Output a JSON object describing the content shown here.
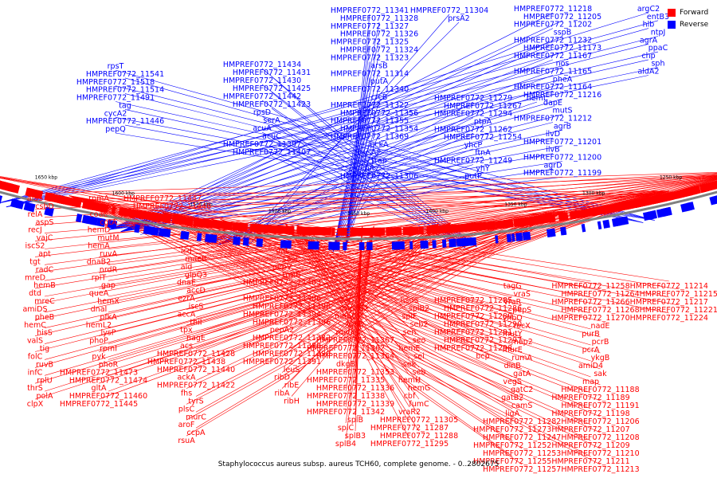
{
  "caption": "Staphylococcus aureus subsp. aureus TCH60, complete genome. - 0..2802675",
  "legend": [
    {
      "label": "Forward",
      "color": "#ff0000"
    },
    {
      "label": "Reverse",
      "color": "#0000ff"
    }
  ],
  "colors": {
    "forward": "#ff0000",
    "reverse": "#0000ff",
    "backbone": "#808080"
  },
  "kbp_ticks": [
    "1650 kbp",
    "1600 kbp",
    "1550 kbp",
    "1500 kbp",
    "1450 kbp",
    "1400 kbp",
    "1350 kbp",
    "1300 kbp",
    "1250 kbp"
  ],
  "labels": {
    "blue_left": [
      "rpsT",
      "HMPREF0772_11541",
      "HMPREF0772_11518",
      "HMPREF0772_11514",
      "HMPREF0772_11491",
      "tag",
      "cycA2",
      "HMPREF0772_11446",
      "pepQ"
    ],
    "blue_mid": [
      "HMPREF0772_11434",
      "HMPREF0772_11431",
      "HMPREF0772_11430",
      "HMPREF0772_11425",
      "HMPREF0772_11442",
      "HMPREF0772_11423",
      "rpsD",
      "serA",
      "acuA",
      "acuC",
      "HMPREF0772_11397",
      "HMPREF0772_11407"
    ],
    "blue_center": [
      "HMPREF0772_11341",
      "HMPREF0772_11328",
      "HMPREF0772_11327",
      "HMPREF0772_11326",
      "HMPREF0772_11325",
      "HMPREF0772_11324",
      "HMPREF0772_11323",
      "arsB",
      "HMPREF0772_11314",
      "putA",
      "HMPREF0772_11340",
      "crcB",
      "HMPREF0772_11322",
      "HMPREF0772_11356",
      "HMPREF0772_11355",
      "HMPREF0772_11354",
      "HMPREF0772_11369",
      "pckA",
      "hysA2",
      "trap",
      "hit",
      "HMPREF0772_11306",
      "HMPREF0772_11304",
      "prsA2"
    ],
    "blue_right_mid": [
      "HMPREF0772_11279",
      "HMPREF0772_11267",
      "HMPREF0772_11294",
      "ptpA",
      "HMPREF0772_11262",
      "HMPREF0772_11254",
      "yhcP",
      "ftnA",
      "HMPREF0772_11249",
      "yhY",
      "putP",
      "hemL"
    ],
    "blue_right": [
      "HMPREF0772_11218",
      "HMPREF0772_11205",
      "HMPREF0772_11202",
      "sspB",
      "HMPREF0772_11232",
      "HMPREF0772_11173",
      "HMPREF0772_11167",
      "nos",
      "HMPREF0772_11165",
      "pheA",
      "HMPREF0772_11164",
      "HMPREF0772_11216",
      "dapE",
      "mutS",
      "HMPREF0772_11212",
      "agrB",
      "ilvD",
      "HMPREF0772_11201",
      "ilvB",
      "HMPREF0772_11200",
      "agrD",
      "HMPREF0772_11199",
      "argC2",
      "entB3",
      "hlb",
      "ntpJ",
      "agrA",
      "ppaC",
      "chp",
      "sph",
      "aldA2"
    ],
    "red_left": [
      "alaS",
      "csbD",
      "relA",
      "aspS",
      "recJ",
      "vajC",
      "iscS2",
      "apt",
      "tgt",
      "radC",
      "mreD",
      "hemB",
      "dtd",
      "mreC",
      "amiDS",
      "pheB",
      "hemC",
      "hisS",
      "valS",
      "tig",
      "folC",
      "ruvB",
      "infC",
      "rplU",
      "thrS",
      "polA",
      "clpX",
      "rpmA",
      "ysxC",
      "coaE",
      "cgtA",
      "hemD",
      "mutM",
      "hemA",
      "ruvA",
      "dnaB2",
      "nrdR",
      "rplT",
      "gap",
      "queA",
      "hemX",
      "dnaI",
      "pfkA",
      "hemL2",
      "lysP",
      "phoP",
      "rpmI",
      "pyk",
      "phoR",
      "HMPREF0772_11473",
      "HMPREF0772_11474",
      "gltA",
      "HMPREF0772_11460",
      "HMPREF0772_11445",
      "HMPREF0772_11447",
      "HMPREF0772_11448"
    ],
    "red_mid": [
      "icd",
      "maeB",
      "ald",
      "glpQ3",
      "dnaE",
      "accD",
      "ezrA",
      "iscS",
      "accA",
      "thiI",
      "tpx",
      "nagE",
      "acs",
      "HMPREF0772_11428",
      "HMPREF0772_11438",
      "HMPREF0772_11440",
      "ackA",
      "HMPREF0772_11422",
      "fhs",
      "tyrS",
      "plsC",
      "murC",
      "aroF",
      "ccpA",
      "rsuA",
      "dat",
      "sasC",
      "pepV",
      "trmB",
      "HMPREF0772_11403",
      "rot",
      "HMPREF0772_11406",
      "HMPREF0772_11398",
      "HMPREF0772_11394",
      "HMPREF0772_11396",
      "pepA2",
      "HMPREF0772_11382",
      "HMPREF0772_11388",
      "HMPREF0772_11390",
      "HMPREF0772_11391",
      "leuS",
      "ribD",
      "ribE",
      "ribA",
      "ribH"
    ],
    "red_center": [
      "tal",
      "menE2",
      "menC",
      "ytkD",
      "metK",
      "HMPREF0772_11367",
      "HMPREF0772_11362",
      "HMPREF0772_11364",
      "dkgB",
      "HMPREF0772_11353",
      "HMPREF0772_11335",
      "HMPREF0772_11336",
      "HMPREF0772_11338",
      "HMPREF0772_11339",
      "HMPREF0772_11342",
      "splB",
      "splC",
      "splB3",
      "splB4",
      "hsdS",
      "splB2",
      "splF",
      "seb2",
      "sen",
      "seo",
      "hemE",
      "sei",
      "sek",
      "seb",
      "hemH",
      "hemG",
      "cbf",
      "fumC",
      "vraR2",
      "HMPREF0772_11305",
      "HMPREF0772_11287",
      "HMPREF0772_11288",
      "HMPREF0772_11295",
      "HMPREF0772_11285",
      "HMPREF0772_11286",
      "HMPREF0772_11289",
      "HMPREF0772_11290",
      "HMPREF0772_11291",
      "HMPREF0772_11297",
      "HMPREF0772_11298",
      "bcp"
    ],
    "red_right": [
      "tagG",
      "vraS",
      "vraR",
      "pepS",
      "yhbO",
      "recX",
      "mutY",
      "map2",
      "murE",
      "rumA",
      "dinB",
      "gatA",
      "vegS",
      "gatC2",
      "gatB2",
      "camS",
      "ligA",
      "HMPREF0772_11282",
      "HMPREF0772_11273",
      "HMPREF0772_11247",
      "HMPREF0772_11252",
      "HMPREF0772_11253",
      "HMPREF0772_11255",
      "HMPREF0772_11257",
      "HMPREF0772_11258",
      "HMPREF0772_11264",
      "HMPREF0772_11266",
      "HMPREF0772_11268",
      "HMPREF0772_11270",
      "nadE",
      "purB",
      "pcrB",
      "pcrA",
      "ykgB",
      "amiD4",
      "sak",
      "map",
      "HMPREF0772_11188",
      "HMPREF0772_11189",
      "HMPREF0772_11191",
      "HMPREF0772_11198",
      "HMPREF0772_11206",
      "HMPREF0772_11207",
      "HMPREF0772_11208",
      "HMPREF0772_11209",
      "HMPREF0772_11210",
      "HMPREF0772_11211",
      "HMPREF0772_11213",
      "HMPREF0772_11214",
      "HMPREF0772_11215",
      "HMPREF0772_11217",
      "HMPREF0772_11221",
      "HMPREF0772_11224"
    ]
  }
}
